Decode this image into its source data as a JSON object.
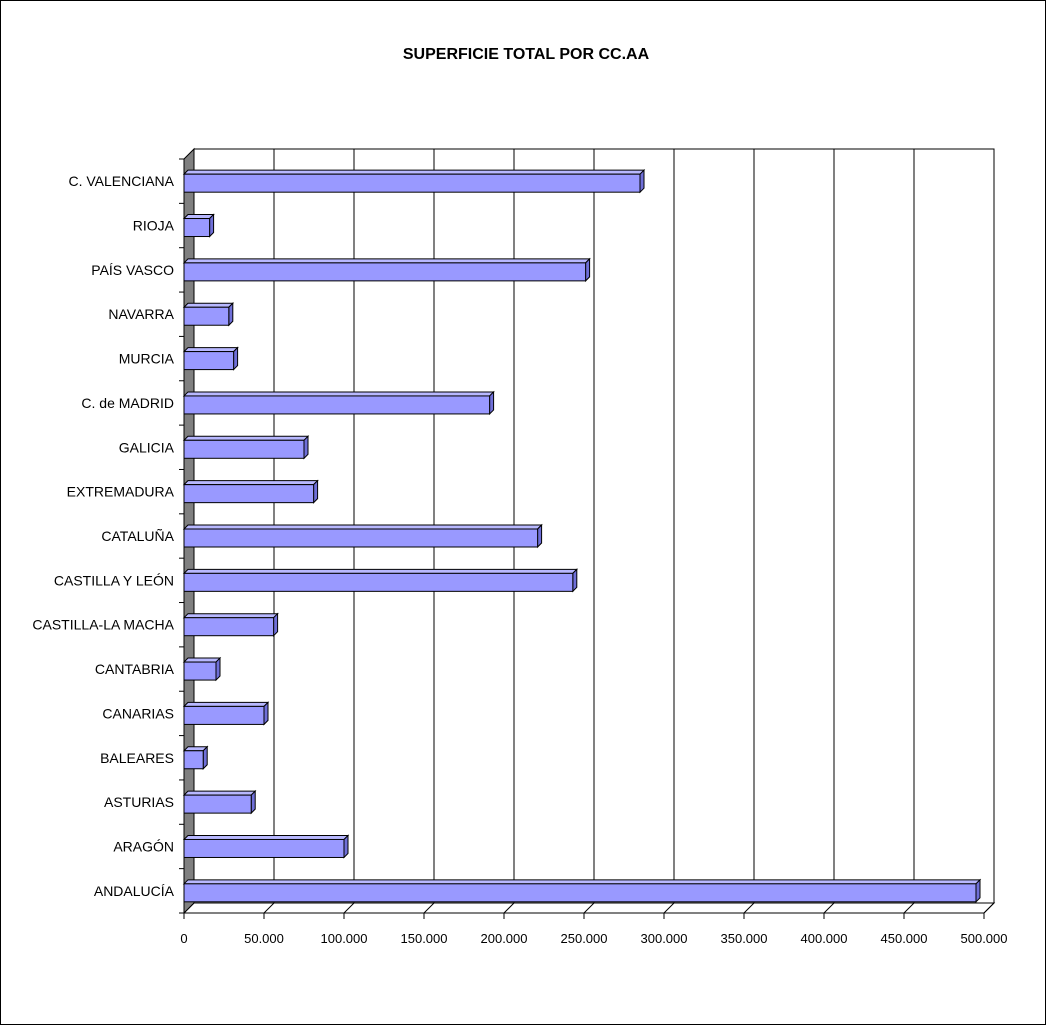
{
  "chart_data": {
    "type": "bar",
    "orientation": "horizontal",
    "title": "SUPERFICIE TOTAL POR CC.AA",
    "xlabel": "",
    "ylabel": "",
    "xlim": [
      0,
      500000
    ],
    "grid": true,
    "legend": "none",
    "bar_color": "#9999ff",
    "categories": [
      "ANDALUCÍA",
      "ARAGÓN",
      "ASTURIAS",
      "BALEARES",
      "CANARIAS",
      "CANTABRIA",
      "CASTILLA-LA MACHA",
      "CASTILLA Y LEÓN",
      "CATALUÑA",
      "EXTREMADURA",
      "GALICIA",
      "C. de MADRID",
      "MURCIA",
      "NAVARRA",
      "PAÍS VASCO",
      "RIOJA",
      "C. VALENCIANA"
    ],
    "values": [
      495000,
      100000,
      42000,
      12000,
      50000,
      20000,
      56000,
      243000,
      221000,
      81000,
      75000,
      191000,
      31000,
      28000,
      251000,
      16000,
      285000
    ],
    "x_ticks": [
      {
        "value": 0,
        "label": "0"
      },
      {
        "value": 50000,
        "label": "50.000"
      },
      {
        "value": 100000,
        "label": "100.000"
      },
      {
        "value": 150000,
        "label": "150.000"
      },
      {
        "value": 200000,
        "label": "200.000"
      },
      {
        "value": 250000,
        "label": "250.000"
      },
      {
        "value": 300000,
        "label": "300.000"
      },
      {
        "value": 350000,
        "label": "350.000"
      },
      {
        "value": 400000,
        "label": "400.000"
      },
      {
        "value": 450000,
        "label": "450.000"
      },
      {
        "value": 500000,
        "label": "500.000"
      }
    ]
  }
}
